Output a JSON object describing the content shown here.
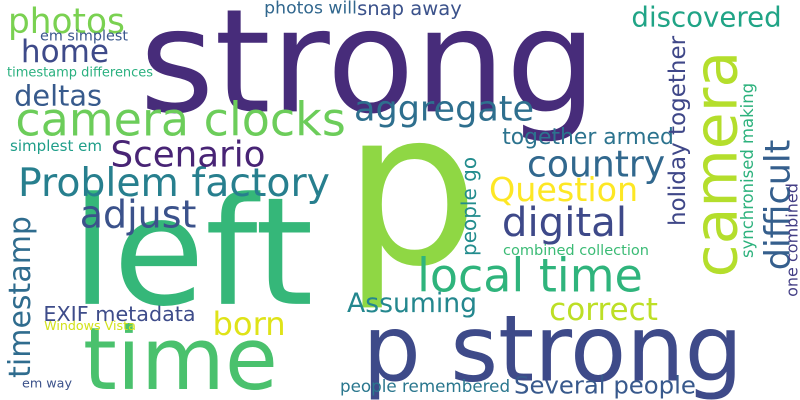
{
  "words": [
    {
      "text": "strong",
      "color": "#472c7a"
    },
    {
      "text": "p",
      "color": "#8fd744"
    },
    {
      "text": "left",
      "color": "#35b779"
    },
    {
      "text": "camera",
      "color": "#b4de2c"
    },
    {
      "text": "p strong",
      "color": "#3e4a89"
    },
    {
      "text": "time",
      "color": "#4ac16d"
    },
    {
      "text": "camera clocks",
      "color": "#6ccd5a"
    },
    {
      "text": "local time",
      "color": "#2fb47c"
    },
    {
      "text": "aggregate",
      "color": "#2e6f8e"
    },
    {
      "text": "Problem factory",
      "color": "#277f8e"
    },
    {
      "text": "digital",
      "color": "#3e4989"
    },
    {
      "text": "photos",
      "color": "#7ad151"
    },
    {
      "text": "home",
      "color": "#3e4a89"
    },
    {
      "text": "Scenario",
      "color": "#482475"
    },
    {
      "text": "adjust",
      "color": "#3b528b"
    },
    {
      "text": "country",
      "color": "#31688e"
    },
    {
      "text": "Question",
      "color": "#fde725"
    },
    {
      "text": "born",
      "color": "#dfe318"
    },
    {
      "text": "correct",
      "color": "#bddf26"
    },
    {
      "text": "Assuming",
      "color": "#24878e"
    },
    {
      "text": "difficult",
      "color": "#355f8d"
    },
    {
      "text": "deltas",
      "color": "#375a8c"
    },
    {
      "text": "discovered",
      "color": "#20a486"
    },
    {
      "text": "Several people",
      "color": "#38598c"
    },
    {
      "text": "timestamp",
      "color": "#2f6c8e"
    },
    {
      "text": "snap away",
      "color": "#3b528b"
    },
    {
      "text": "together armed",
      "color": "#2c738e"
    },
    {
      "text": "holiday together",
      "color": "#3f4788"
    },
    {
      "text": "people go",
      "color": "#228c8d"
    },
    {
      "text": "EXIF metadata",
      "color": "#3e4c8a"
    },
    {
      "text": "synchronised making",
      "color": "#2db27d"
    },
    {
      "text": "photos will",
      "color": "#31678e"
    },
    {
      "text": "people remembered",
      "color": "#2a778e"
    },
    {
      "text": "one combined",
      "color": "#433e85"
    },
    {
      "text": "combined collection",
      "color": "#3bbb75"
    },
    {
      "text": "em simplest",
      "color": "#39568c"
    },
    {
      "text": "simplest em",
      "color": "#1f9e89"
    },
    {
      "text": "timestamp differences",
      "color": "#2ab07f"
    },
    {
      "text": "Windows Vista",
      "color": "#d2e21b"
    },
    {
      "text": "em way",
      "color": "#3b528b"
    }
  ]
}
